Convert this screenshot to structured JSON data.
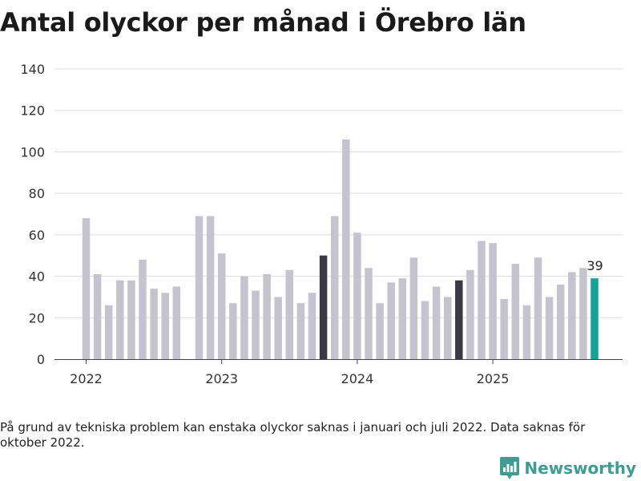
{
  "chart_data": {
    "type": "bar",
    "title": "Antal olyckor per månad i Örebro län",
    "xlabel": "",
    "ylabel": "",
    "ylim": [
      0,
      140
    ],
    "yticks": [
      0,
      20,
      40,
      60,
      80,
      100,
      120,
      140
    ],
    "categories": [
      "2022-01",
      "2022-02",
      "2022-03",
      "2022-04",
      "2022-05",
      "2022-06",
      "2022-07",
      "2022-08",
      "2022-09",
      "2022-10",
      "2022-11",
      "2022-12",
      "2023-01",
      "2023-02",
      "2023-03",
      "2023-04",
      "2023-05",
      "2023-06",
      "2023-07",
      "2023-08",
      "2023-09",
      "2023-10",
      "2023-11",
      "2023-12",
      "2024-01",
      "2024-02",
      "2024-03",
      "2024-04",
      "2024-05",
      "2024-06",
      "2024-07",
      "2024-08",
      "2024-09",
      "2024-10",
      "2024-11",
      "2024-12",
      "2025-01",
      "2025-02",
      "2025-03",
      "2025-04",
      "2025-05",
      "2025-06",
      "2025-07",
      "2025-08",
      "2025-09",
      "2025-10"
    ],
    "values": [
      68,
      41,
      26,
      38,
      38,
      48,
      34,
      32,
      35,
      null,
      69,
      69,
      51,
      27,
      40,
      33,
      41,
      30,
      43,
      27,
      32,
      50,
      69,
      106,
      61,
      44,
      27,
      37,
      39,
      49,
      28,
      35,
      30,
      38,
      43,
      57,
      56,
      29,
      46,
      26,
      49,
      30,
      36,
      42,
      44,
      39
    ],
    "highlight_months": [
      "2023-10",
      "2024-10"
    ],
    "latest_month": "2025-10",
    "year_labels": [
      {
        "label": "2022",
        "month": "2022-01"
      },
      {
        "label": "2023",
        "month": "2023-01"
      },
      {
        "label": "2024",
        "month": "2024-01"
      },
      {
        "label": "2025",
        "month": "2025-01"
      }
    ],
    "value_labels": [
      {
        "month": "2025-10",
        "text": "39"
      }
    ],
    "colors": {
      "default": "#c5c4ce",
      "highlight": "#3a3945",
      "latest": "#13a39a",
      "grid": "#dddddd",
      "axis": "#444444"
    }
  },
  "note": "På grund av tekniska problem kan enstaka olyckor saknas i januari och juli 2022. Data saknas för oktober 2022.",
  "brand": {
    "name": "Newsworthy",
    "icon": "bar-chart-speech-bubble-icon",
    "color": "#3f9c92"
  }
}
